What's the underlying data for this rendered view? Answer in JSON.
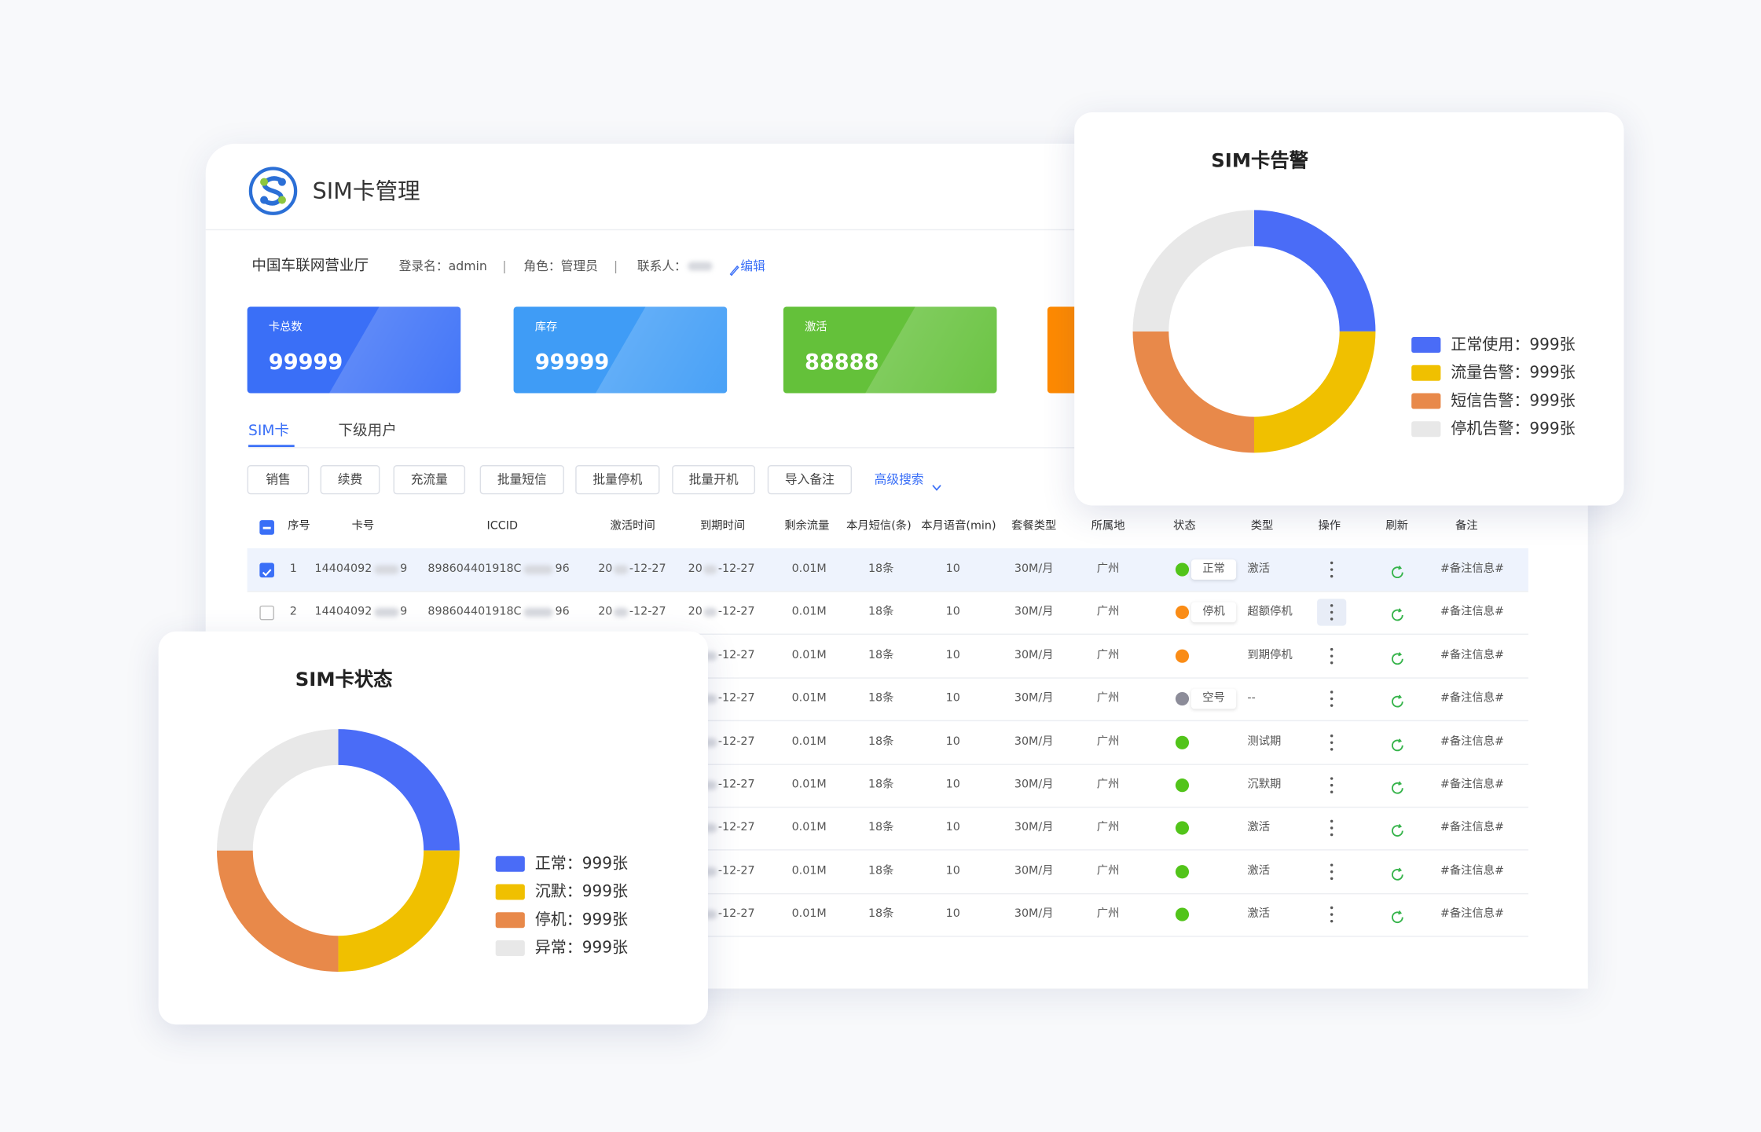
{
  "header": {
    "title": "SIM卡管理"
  },
  "info": {
    "org": "中国车联网营业厅",
    "login": "登录名：admin",
    "divider": "|",
    "role": "角色：管理员",
    "contact": "联系人：",
    "edit": "编辑"
  },
  "stats": [
    {
      "label": "卡总数",
      "value": "99999",
      "color": "#3a6ff7"
    },
    {
      "label": "库存",
      "value": "99999",
      "color": "#3f9cf6"
    },
    {
      "label": "激活",
      "value": "88888",
      "color": "#64c13a"
    },
    {
      "color": "#ff8a00"
    }
  ],
  "tabs": [
    "SIM卡",
    "下级用户"
  ],
  "buttons": [
    "销售",
    "续费",
    "充流量",
    "批量短信",
    "批量停机",
    "批量开机",
    "导入备注"
  ],
  "advanced_search": "高级搜索",
  "table": {
    "columns": [
      "序号",
      "卡号",
      "ICCID",
      "激活时间",
      "到期时间",
      "剩余流量",
      "本月短信(条)",
      "本月语音(min)",
      "套餐类型",
      "所属地",
      "状态",
      "类型",
      "操作",
      "刷新",
      "备注"
    ],
    "rows": [
      {
        "index": "1",
        "checked": true,
        "card": [
          "14404092",
          "9"
        ],
        "iccid": [
          "898604401918C",
          "96"
        ],
        "activated": [
          "20",
          "-12-27"
        ],
        "expires": [
          "20",
          "-12-27"
        ],
        "traffic": "0.01M",
        "sms": "18条",
        "voice": "10",
        "plan": "30M/月",
        "region": "广州",
        "status_color": "#52c41a",
        "status": "正常",
        "type": "激活",
        "note": "#备注信息#"
      },
      {
        "index": "2",
        "checked": false,
        "card": [
          "14404092",
          "9"
        ],
        "iccid": [
          "898604401918C",
          "96"
        ],
        "activated": [
          "20",
          "-12-27"
        ],
        "expires": [
          "20",
          "-12-27"
        ],
        "traffic": "0.01M",
        "sms": "18条",
        "voice": "10",
        "plan": "30M/月",
        "region": "广州",
        "status_color": "#fa8c16",
        "status": "停机",
        "type": "超额停机",
        "note": "#备注信息#"
      },
      {
        "expires": [
          "",
          "-12-27"
        ],
        "traffic": "0.01M",
        "sms": "18条",
        "voice": "10",
        "plan": "30M/月",
        "region": "广州",
        "status_color": "#fa8c16",
        "type": "到期停机",
        "note": "#备注信息#"
      },
      {
        "expires": [
          "",
          "-12-27"
        ],
        "traffic": "0.01M",
        "sms": "18条",
        "voice": "10",
        "plan": "30M/月",
        "region": "广州",
        "status_color": "#8c8c99",
        "status": "空号",
        "type": "--",
        "note": "#备注信息#"
      },
      {
        "expires": [
          "",
          "-12-27"
        ],
        "traffic": "0.01M",
        "sms": "18条",
        "voice": "10",
        "plan": "30M/月",
        "region": "广州",
        "status_color": "#52c41a",
        "type": "测试期",
        "note": "#备注信息#"
      },
      {
        "expires": [
          "",
          "-12-27"
        ],
        "traffic": "0.01M",
        "sms": "18条",
        "voice": "10",
        "plan": "30M/月",
        "region": "广州",
        "status_color": "#52c41a",
        "type": "沉默期",
        "note": "#备注信息#"
      },
      {
        "expires": [
          "",
          "-12-27"
        ],
        "traffic": "0.01M",
        "sms": "18条",
        "voice": "10",
        "plan": "30M/月",
        "region": "广州",
        "status_color": "#52c41a",
        "type": "激活",
        "note": "#备注信息#"
      },
      {
        "expires": [
          "",
          "-12-27"
        ],
        "traffic": "0.01M",
        "sms": "18条",
        "voice": "10",
        "plan": "30M/月",
        "region": "广州",
        "status_color": "#52c41a",
        "type": "激活",
        "note": "#备注信息#"
      },
      {
        "expires": [
          "",
          "-12-27"
        ],
        "traffic": "0.01M",
        "sms": "18条",
        "voice": "10",
        "plan": "30M/月",
        "region": "广州",
        "status_color": "#52c41a",
        "type": "激活",
        "note": "#备注信息#"
      }
    ]
  },
  "chart_data": [
    {
      "type": "donut",
      "title": "SIM卡告警",
      "categories": [
        "正常使用：",
        "流量告警：",
        "短信告警：",
        "停机告警："
      ],
      "values": [
        999,
        999,
        999,
        999
      ],
      "value_labels": [
        "999张",
        "999张",
        "999张",
        "999张"
      ],
      "colors": [
        "#4a6cf7",
        "#f0c000",
        "#e8894a",
        "#e8e8e8"
      ]
    },
    {
      "type": "donut",
      "title": "SIM卡状态",
      "categories": [
        "正常：",
        "沉默：",
        "停机：",
        "异常："
      ],
      "values": [
        999,
        999,
        999,
        999
      ],
      "value_labels": [
        "999张",
        "999张",
        "999张",
        "999张"
      ],
      "colors": [
        "#4a6cf7",
        "#f0c000",
        "#e8894a",
        "#e8e8e8"
      ]
    }
  ]
}
